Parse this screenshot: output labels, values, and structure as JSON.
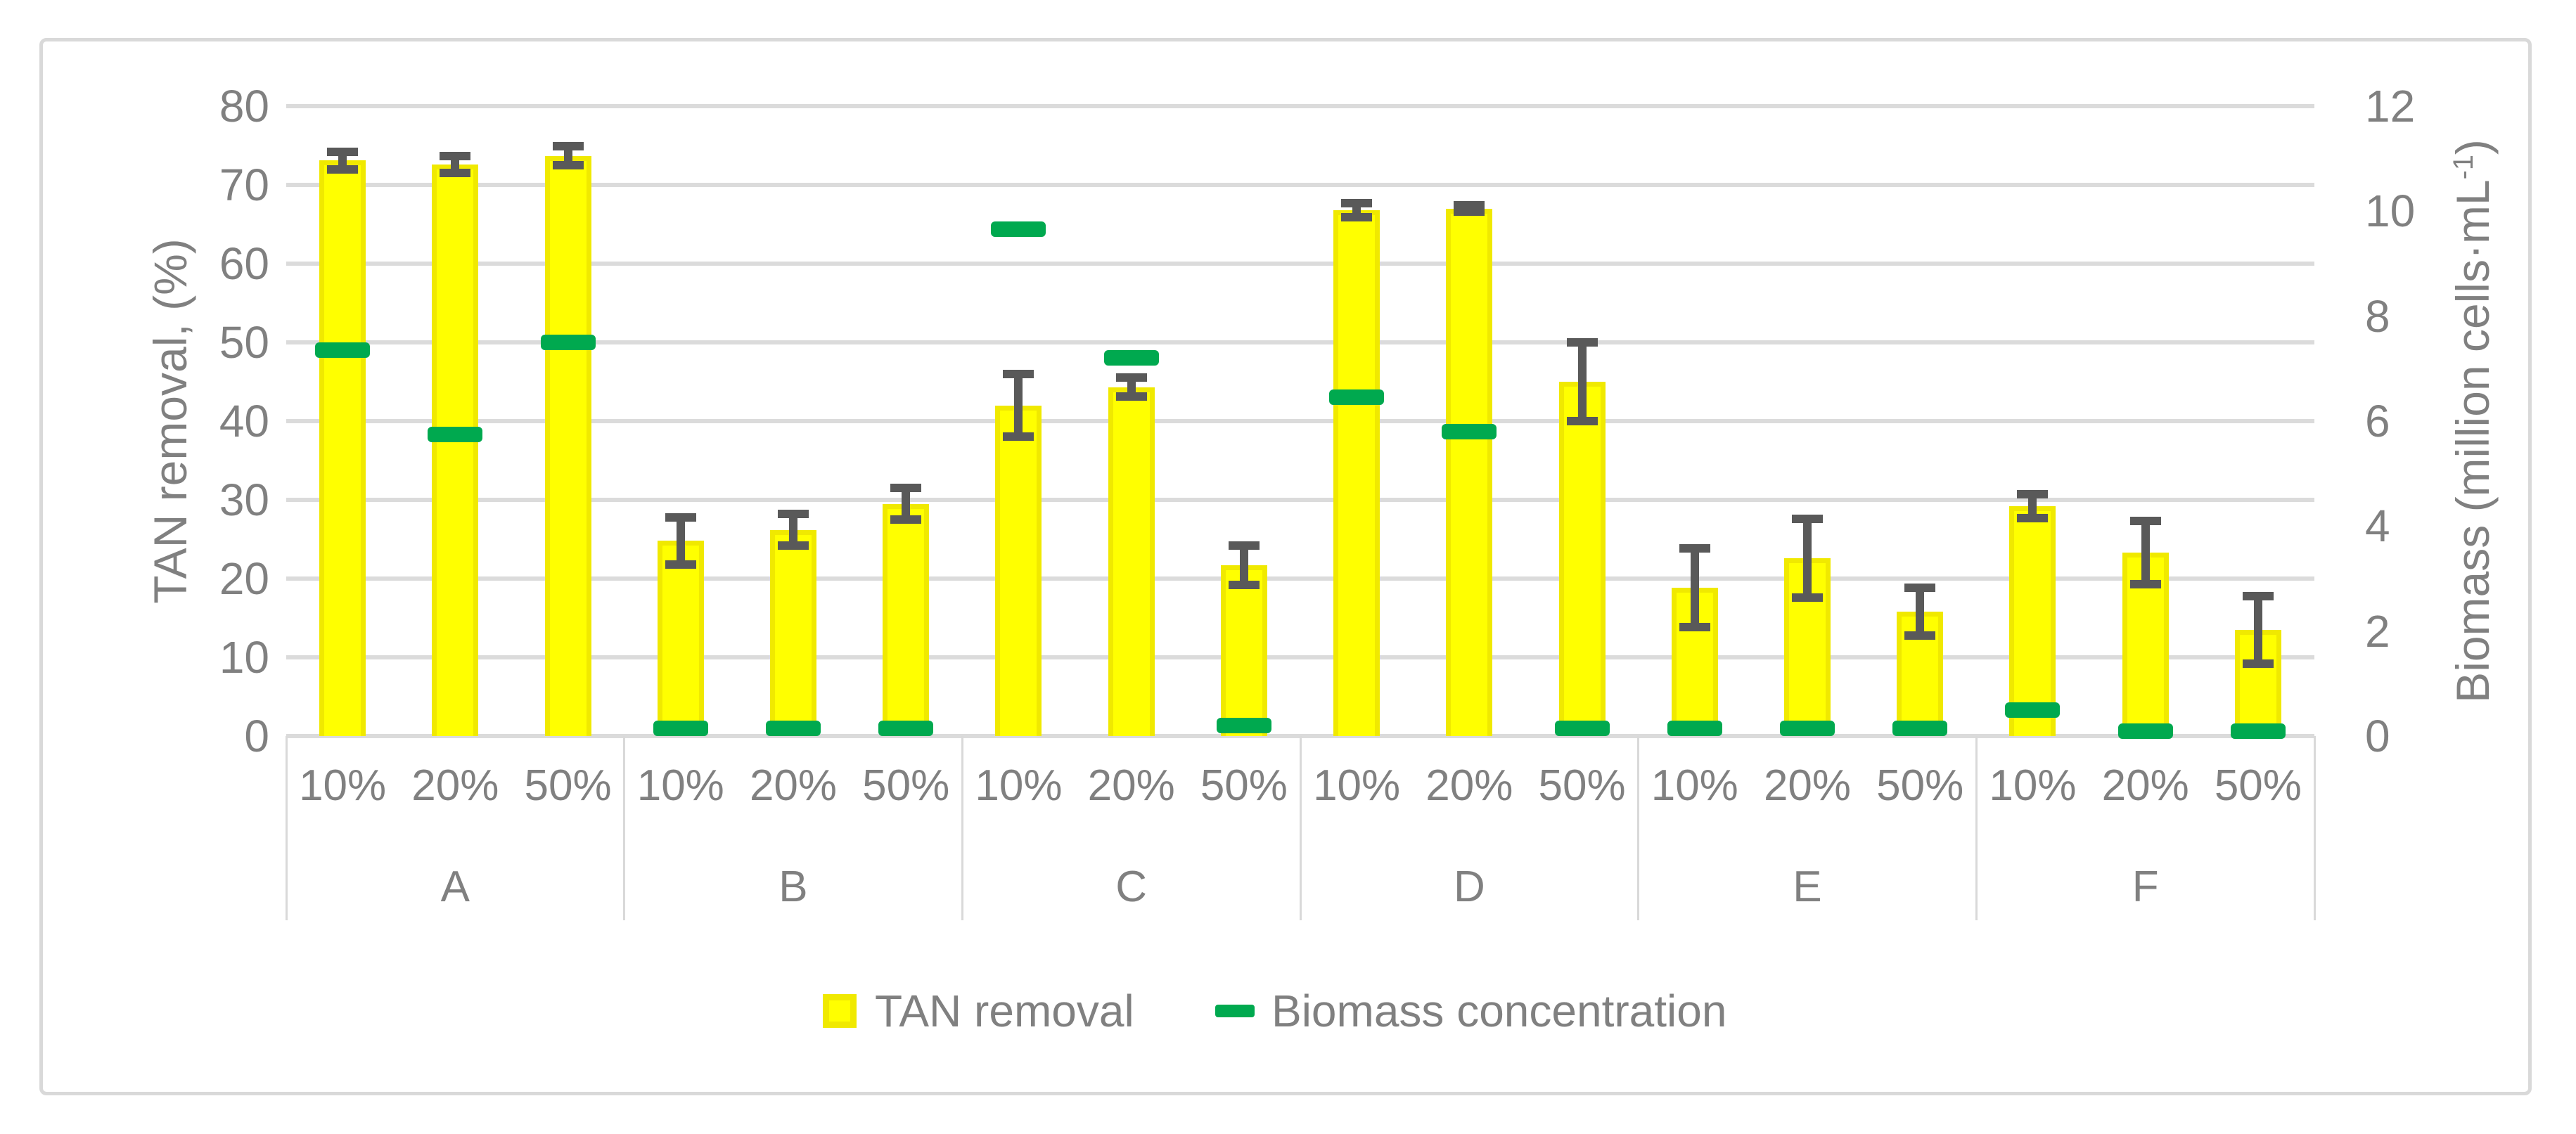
{
  "palette": {
    "bar_fill": "#ffff00",
    "bar_edge": "#f0e900",
    "biomass_green": "#00a94f",
    "error_bar_gray": "#595959",
    "gridline_gray": "#dbdbdb",
    "text_gray": "#808080",
    "frame_gray": "#d9d9d9"
  },
  "left_axis": {
    "title": "TAN removal, (%)",
    "ticks": [
      "0",
      "10",
      "20",
      "30",
      "40",
      "50",
      "60",
      "70",
      "80"
    ]
  },
  "right_axis": {
    "title_prefix": "Biomass (million cells·mL",
    "title_sup": "-1",
    "title_suffix": ")",
    "ticks": [
      "0",
      "2",
      "4",
      "6",
      "8",
      "10",
      "12"
    ]
  },
  "legend": {
    "tan_label": "TAN removal",
    "biomass_label": "Biomass concentration"
  },
  "chart_data": {
    "type": "bar",
    "title": "",
    "xlabel": "",
    "ylabel_left": "TAN removal, (%)",
    "ylabel_right": "Biomass (million cells·mL⁻¹)",
    "ylim_left": [
      0,
      80
    ],
    "ylim_right": [
      0,
      12
    ],
    "grid": "horizontal, every 10 (left axis)",
    "legend_position": "bottom",
    "legend_entries": [
      "TAN removal",
      "Biomass concentration"
    ],
    "subcategories": [
      "10%",
      "20%",
      "50%"
    ],
    "group_labels": [
      "A",
      "B",
      "C",
      "D",
      "E",
      "F"
    ],
    "groups": [
      {
        "label": "A",
        "points": [
          {
            "dilution": "10%",
            "tan_removal_pct": 73.1,
            "tan_err": 1.1,
            "biomass_million_cells_per_ml": 7.35
          },
          {
            "dilution": "20%",
            "tan_removal_pct": 72.6,
            "tan_err": 1.1,
            "biomass_million_cells_per_ml": 5.75
          },
          {
            "dilution": "50%",
            "tan_removal_pct": 73.7,
            "tan_err": 1.2,
            "biomass_million_cells_per_ml": 7.5
          }
        ]
      },
      {
        "label": "B",
        "points": [
          {
            "dilution": "10%",
            "tan_removal_pct": 24.8,
            "tan_err": 3.0,
            "biomass_million_cells_per_ml": 0.15
          },
          {
            "dilution": "20%",
            "tan_removal_pct": 26.2,
            "tan_err": 2.0,
            "biomass_million_cells_per_ml": 0.15
          },
          {
            "dilution": "50%",
            "tan_removal_pct": 29.5,
            "tan_err": 2.0,
            "biomass_million_cells_per_ml": 0.15
          }
        ]
      },
      {
        "label": "C",
        "points": [
          {
            "dilution": "10%",
            "tan_removal_pct": 42.0,
            "tan_err": 4.0,
            "biomass_million_cells_per_ml": 9.65
          },
          {
            "dilution": "20%",
            "tan_removal_pct": 44.3,
            "tan_err": 1.2,
            "biomass_million_cells_per_ml": 7.2
          },
          {
            "dilution": "50%",
            "tan_removal_pct": 21.7,
            "tan_err": 2.5,
            "biomass_million_cells_per_ml": 0.2
          }
        ]
      },
      {
        "label": "D",
        "points": [
          {
            "dilution": "10%",
            "tan_removal_pct": 66.8,
            "tan_err": 0.9,
            "biomass_million_cells_per_ml": 6.45
          },
          {
            "dilution": "20%",
            "tan_removal_pct": 67.0,
            "tan_err": 0.4,
            "biomass_million_cells_per_ml": 5.8
          },
          {
            "dilution": "50%",
            "tan_removal_pct": 45.0,
            "tan_err": 5.0,
            "biomass_million_cells_per_ml": 0.15
          }
        ]
      },
      {
        "label": "E",
        "points": [
          {
            "dilution": "10%",
            "tan_removal_pct": 18.8,
            "tan_err": 5.0,
            "biomass_million_cells_per_ml": 0.15
          },
          {
            "dilution": "20%",
            "tan_removal_pct": 22.6,
            "tan_err": 5.0,
            "biomass_million_cells_per_ml": 0.15
          },
          {
            "dilution": "50%",
            "tan_removal_pct": 15.8,
            "tan_err": 3.0,
            "biomass_million_cells_per_ml": 0.15
          }
        ]
      },
      {
        "label": "F",
        "points": [
          {
            "dilution": "10%",
            "tan_removal_pct": 29.2,
            "tan_err": 1.5,
            "biomass_million_cells_per_ml": 0.5
          },
          {
            "dilution": "20%",
            "tan_removal_pct": 23.3,
            "tan_err": 4.0,
            "biomass_million_cells_per_ml": 0.1
          },
          {
            "dilution": "50%",
            "tan_removal_pct": 13.5,
            "tan_err": 4.3,
            "biomass_million_cells_per_ml": 0.1
          }
        ]
      }
    ]
  }
}
